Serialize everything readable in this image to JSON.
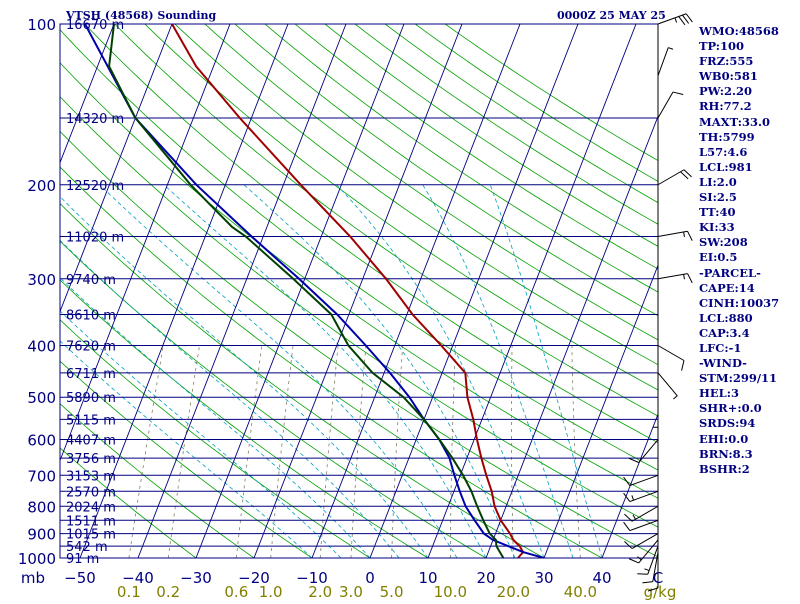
{
  "header": {
    "station": "VTSH (48568) Sounding",
    "datetime": "0000Z 25 MAY 25"
  },
  "indices": [
    "WMO:48568",
    "TP:100",
    "FRZ:555",
    "WB0:581",
    "PW:2.20",
    "RH:77.2",
    "MAXT:33.0",
    "TH:5799",
    "L57:4.6",
    "LCL:981",
    "LI:2.0",
    "SI:2.5",
    "TT:40",
    "KI:33",
    "SW:208",
    "EI:0.5",
    "-PARCEL-",
    "CAPE:14",
    "CINH:10037",
    "LCL:880",
    "CAP:3.4",
    "LFC:-1",
    "-WIND-",
    "STM:299/11",
    "HEL:3",
    "SHR+:0.0",
    "SRDS:94",
    "EHI:0.0",
    "BRN:8.3",
    "BSHR:2"
  ],
  "chart_data": {
    "type": "line",
    "chart_kind": "skew-T log-P",
    "y_axis": {
      "label": "mb",
      "scale": "log",
      "ylim": [
        1000,
        100
      ],
      "ticks": [
        100,
        200,
        300,
        400,
        500,
        600,
        700,
        800,
        900,
        1000
      ]
    },
    "x_axis": {
      "label": "°C",
      "ticks": [
        -50,
        -40,
        -30,
        -20,
        -10,
        0,
        10,
        20,
        30,
        40
      ],
      "last_tick_label": "C"
    },
    "mixing_ratio_axis": {
      "label": "g/kg",
      "ticks": [
        0.1,
        0.2,
        0.6,
        1.0,
        2.0,
        3.0,
        5.0,
        10.0,
        20.0,
        40.0
      ],
      "tick_labels": [
        "0.1",
        "0.2",
        "0.6",
        "1.0",
        "2.0",
        "3.0",
        "5.0",
        "10.0",
        "20.0",
        "40.0"
      ]
    },
    "height_labels": [
      {
        "p": 100,
        "text": "16670 m"
      },
      {
        "p": 150,
        "text": "14320 m"
      },
      {
        "p": 200,
        "text": "12520 m"
      },
      {
        "p": 250,
        "text": "11020 m"
      },
      {
        "p": 300,
        "text": "9740 m"
      },
      {
        "p": 350,
        "text": "8610 m"
      },
      {
        "p": 400,
        "text": "7620 m"
      },
      {
        "p": 450,
        "text": "6711 m"
      },
      {
        "p": 500,
        "text": "5890 m"
      },
      {
        "p": 550,
        "text": "5115 m"
      },
      {
        "p": 600,
        "text": "4407 m"
      },
      {
        "p": 650,
        "text": "3756 m"
      },
      {
        "p": 700,
        "text": "3153 m"
      },
      {
        "p": 750,
        "text": "2570 m"
      },
      {
        "p": 800,
        "text": "2024 m"
      },
      {
        "p": 850,
        "text": "1511 m"
      },
      {
        "p": 900,
        "text": "1015 m"
      },
      {
        "p": 950,
        "text": "542 m"
      },
      {
        "p": 1000,
        "text": "91 m"
      }
    ],
    "series": [
      {
        "color": "#a00000",
        "points": [
          [
            1000,
            25.5
          ],
          [
            975,
            26
          ],
          [
            950,
            25
          ],
          [
            925,
            23.5
          ],
          [
            900,
            22.5
          ],
          [
            850,
            20
          ],
          [
            800,
            18
          ],
          [
            750,
            16.5
          ],
          [
            700,
            14.5
          ],
          [
            650,
            12.5
          ],
          [
            600,
            10.5
          ],
          [
            550,
            8.5
          ],
          [
            500,
            6
          ],
          [
            450,
            4
          ],
          [
            400,
            -2
          ],
          [
            350,
            -9
          ],
          [
            300,
            -16
          ],
          [
            250,
            -25
          ],
          [
            200,
            -37
          ],
          [
            150,
            -52
          ],
          [
            120,
            -63
          ],
          [
            100,
            -70
          ]
        ]
      },
      {
        "color": "#0000aa",
        "points": [
          [
            1000,
            30
          ],
          [
            975,
            26
          ],
          [
            950,
            23
          ],
          [
            925,
            20
          ],
          [
            900,
            18
          ],
          [
            850,
            15.5
          ],
          [
            800,
            13
          ],
          [
            750,
            11
          ],
          [
            700,
            9
          ],
          [
            650,
            7
          ],
          [
            600,
            4
          ],
          [
            550,
            0
          ],
          [
            500,
            -4
          ],
          [
            450,
            -9
          ],
          [
            400,
            -15
          ],
          [
            350,
            -22
          ],
          [
            300,
            -31
          ],
          [
            250,
            -42
          ],
          [
            200,
            -55
          ],
          [
            150,
            -70
          ],
          [
            100,
            -85
          ]
        ]
      },
      {
        "color": "#004000",
        "points": [
          [
            1000,
            23
          ],
          [
            975,
            22
          ],
          [
            950,
            21
          ],
          [
            925,
            20.5
          ],
          [
            900,
            19
          ],
          [
            850,
            17
          ],
          [
            800,
            15
          ],
          [
            750,
            13
          ],
          [
            700,
            10.5
          ],
          [
            650,
            7.5
          ],
          [
            600,
            4
          ],
          [
            550,
            0
          ],
          [
            500,
            -5
          ],
          [
            450,
            -12
          ],
          [
            400,
            -18
          ],
          [
            350,
            -23
          ],
          [
            300,
            -32
          ],
          [
            250,
            -43
          ],
          [
            240,
            -46
          ],
          [
            200,
            -56
          ],
          [
            150,
            -70
          ],
          [
            120,
            -78
          ],
          [
            100,
            -80
          ]
        ]
      }
    ],
    "wind_barbs": [
      {
        "p": 1000,
        "dir": 180,
        "spd": 10
      },
      {
        "p": 975,
        "dir": 190,
        "spd": 10
      },
      {
        "p": 950,
        "dir": 200,
        "spd": 15
      },
      {
        "p": 925,
        "dir": 220,
        "spd": 15
      },
      {
        "p": 900,
        "dir": 240,
        "spd": 10
      },
      {
        "p": 850,
        "dir": 250,
        "spd": 10
      },
      {
        "p": 800,
        "dir": 240,
        "spd": 15
      },
      {
        "p": 750,
        "dir": 250,
        "spd": 15
      },
      {
        "p": 700,
        "dir": 250,
        "spd": 10
      },
      {
        "p": 600,
        "dir": 220,
        "spd": 10
      },
      {
        "p": 500,
        "dir": 180,
        "spd": 5
      },
      {
        "p": 450,
        "dir": 140,
        "spd": 5
      },
      {
        "p": 400,
        "dir": 120,
        "spd": 10
      },
      {
        "p": 300,
        "dir": 80,
        "spd": 15
      },
      {
        "p": 250,
        "dir": 80,
        "spd": 15
      },
      {
        "p": 200,
        "dir": 60,
        "spd": 20
      },
      {
        "p": 150,
        "dir": 30,
        "spd": 10
      },
      {
        "p": 125,
        "dir": 20,
        "spd": 5
      },
      {
        "p": 100,
        "dir": 70,
        "spd": 35
      }
    ],
    "colors": {
      "isobars": "#000080",
      "isotherms": "#000080",
      "dry_adiabats": "#00a000",
      "moist_adiabats": "#00a0c0",
      "mixing_ratio": "#808060",
      "axis_labels": "#000080",
      "mixr_labels": "#808000"
    }
  }
}
